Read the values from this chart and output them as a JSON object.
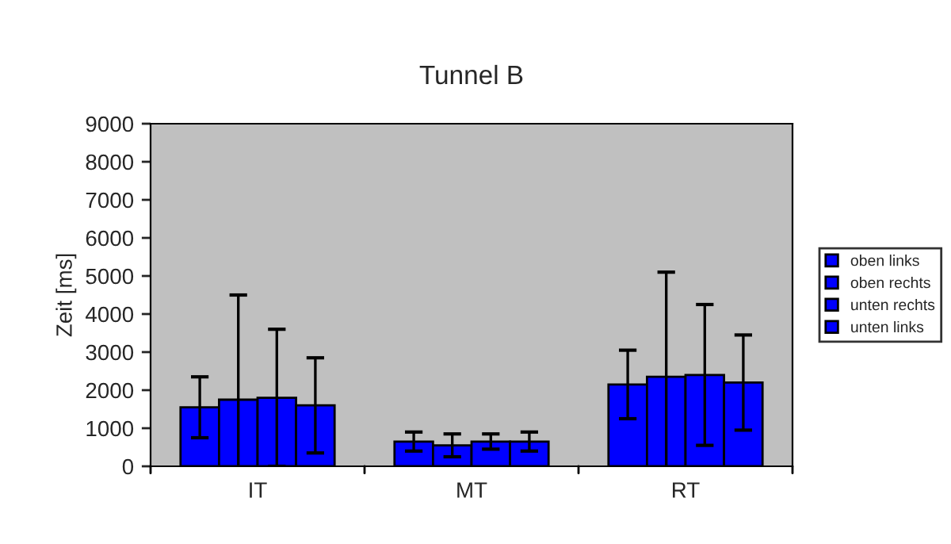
{
  "chart_data": {
    "type": "bar",
    "title": "Tunnel B",
    "ylabel": "Zeit [ms]",
    "categories": [
      "IT",
      "MT",
      "RT"
    ],
    "series": [
      {
        "name": "oben links",
        "color": "#0000ff",
        "values": [
          1550,
          650,
          2150
        ],
        "errors": [
          800,
          250,
          900
        ]
      },
      {
        "name": "oben rechts",
        "color": "#0000ff",
        "values": [
          1750,
          550,
          2350
        ],
        "errors": [
          2750,
          300,
          2750
        ]
      },
      {
        "name": "unten rechts",
        "color": "#0000ff",
        "values": [
          1800,
          650,
          2400
        ],
        "errors": [
          1800,
          200,
          1850
        ]
      },
      {
        "name": "unten links",
        "color": "#0000ff",
        "values": [
          1600,
          650,
          2200
        ],
        "errors": [
          1250,
          250,
          1250
        ]
      }
    ],
    "ylim": [
      0,
      9000
    ],
    "yticks": [
      0,
      1000,
      2000,
      3000,
      4000,
      5000,
      6000,
      7000,
      8000,
      9000
    ],
    "grid": false,
    "legend": "right"
  }
}
